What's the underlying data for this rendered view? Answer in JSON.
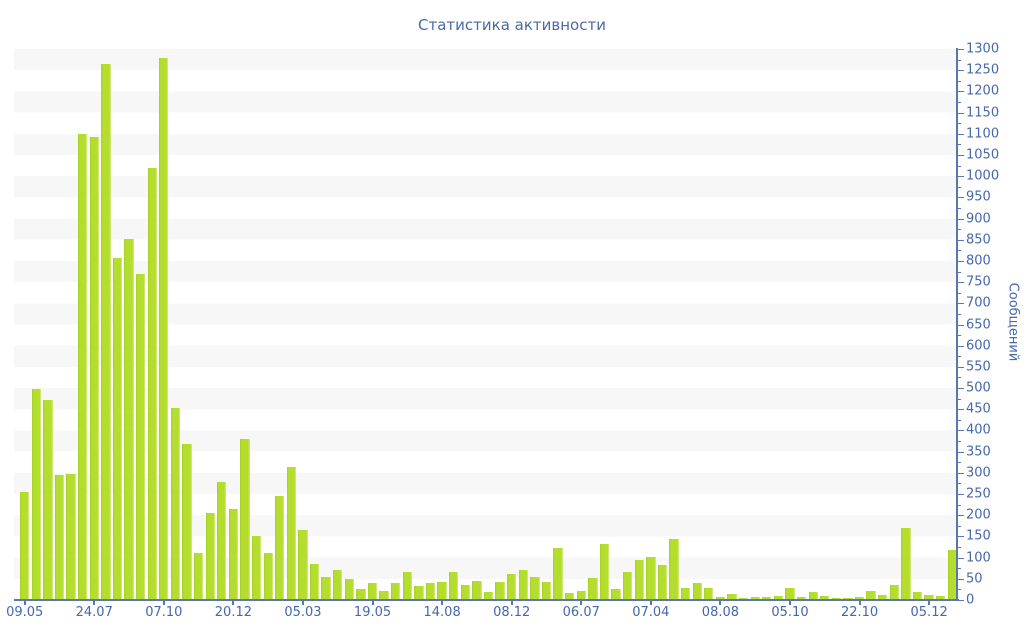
{
  "title": "Статистика активности",
  "chart_data": {
    "type": "bar",
    "title": "Статистика активности",
    "ylabel": "Сообщений",
    "xlabel": "",
    "ylim": [
      0,
      1300
    ],
    "y_tick_step": 50,
    "y_minor_tick_step": 25,
    "legend": "none",
    "grid": "horizontal-stripes-every-50",
    "bar_color": "#b4dd2e",
    "bar_edge_light": "#d8eb8e",
    "bar_edge_dark": "#a6ce27",
    "axis_color": "#5b77ae",
    "label_color": "#4667ac",
    "title_color": "#4a6aa2",
    "stripe_color": "#f7f7f7",
    "x_tick_labels": [
      "09.05",
      "24.07",
      "07.10",
      "20.12",
      "05.03",
      "19.05",
      "14.08",
      "08.12",
      "06.07",
      "07.04",
      "08.08",
      "05.10",
      "22.10",
      "05.12"
    ],
    "x_tick_bar_indices": [
      0,
      6,
      12,
      18,
      24,
      30,
      36,
      42,
      48,
      54,
      60,
      66,
      72,
      78
    ],
    "values": [
      255,
      497,
      473,
      295,
      298,
      1100,
      1092,
      1265,
      808,
      852,
      770,
      1020,
      1278,
      452,
      368,
      110,
      205,
      278,
      215,
      380,
      152,
      112,
      245,
      313,
      165,
      85,
      55,
      70,
      50,
      25,
      40,
      22,
      40,
      67,
      32,
      40,
      42,
      65,
      36,
      45,
      18,
      42,
      61,
      71,
      55,
      42,
      122,
      17,
      21,
      53,
      133,
      26,
      65,
      95,
      102,
      83,
      144,
      28,
      41,
      29,
      6,
      14,
      4,
      6,
      6,
      10,
      28,
      8,
      18,
      10,
      4,
      4,
      8,
      21,
      12,
      35,
      170,
      18,
      12,
      10,
      118
    ]
  }
}
